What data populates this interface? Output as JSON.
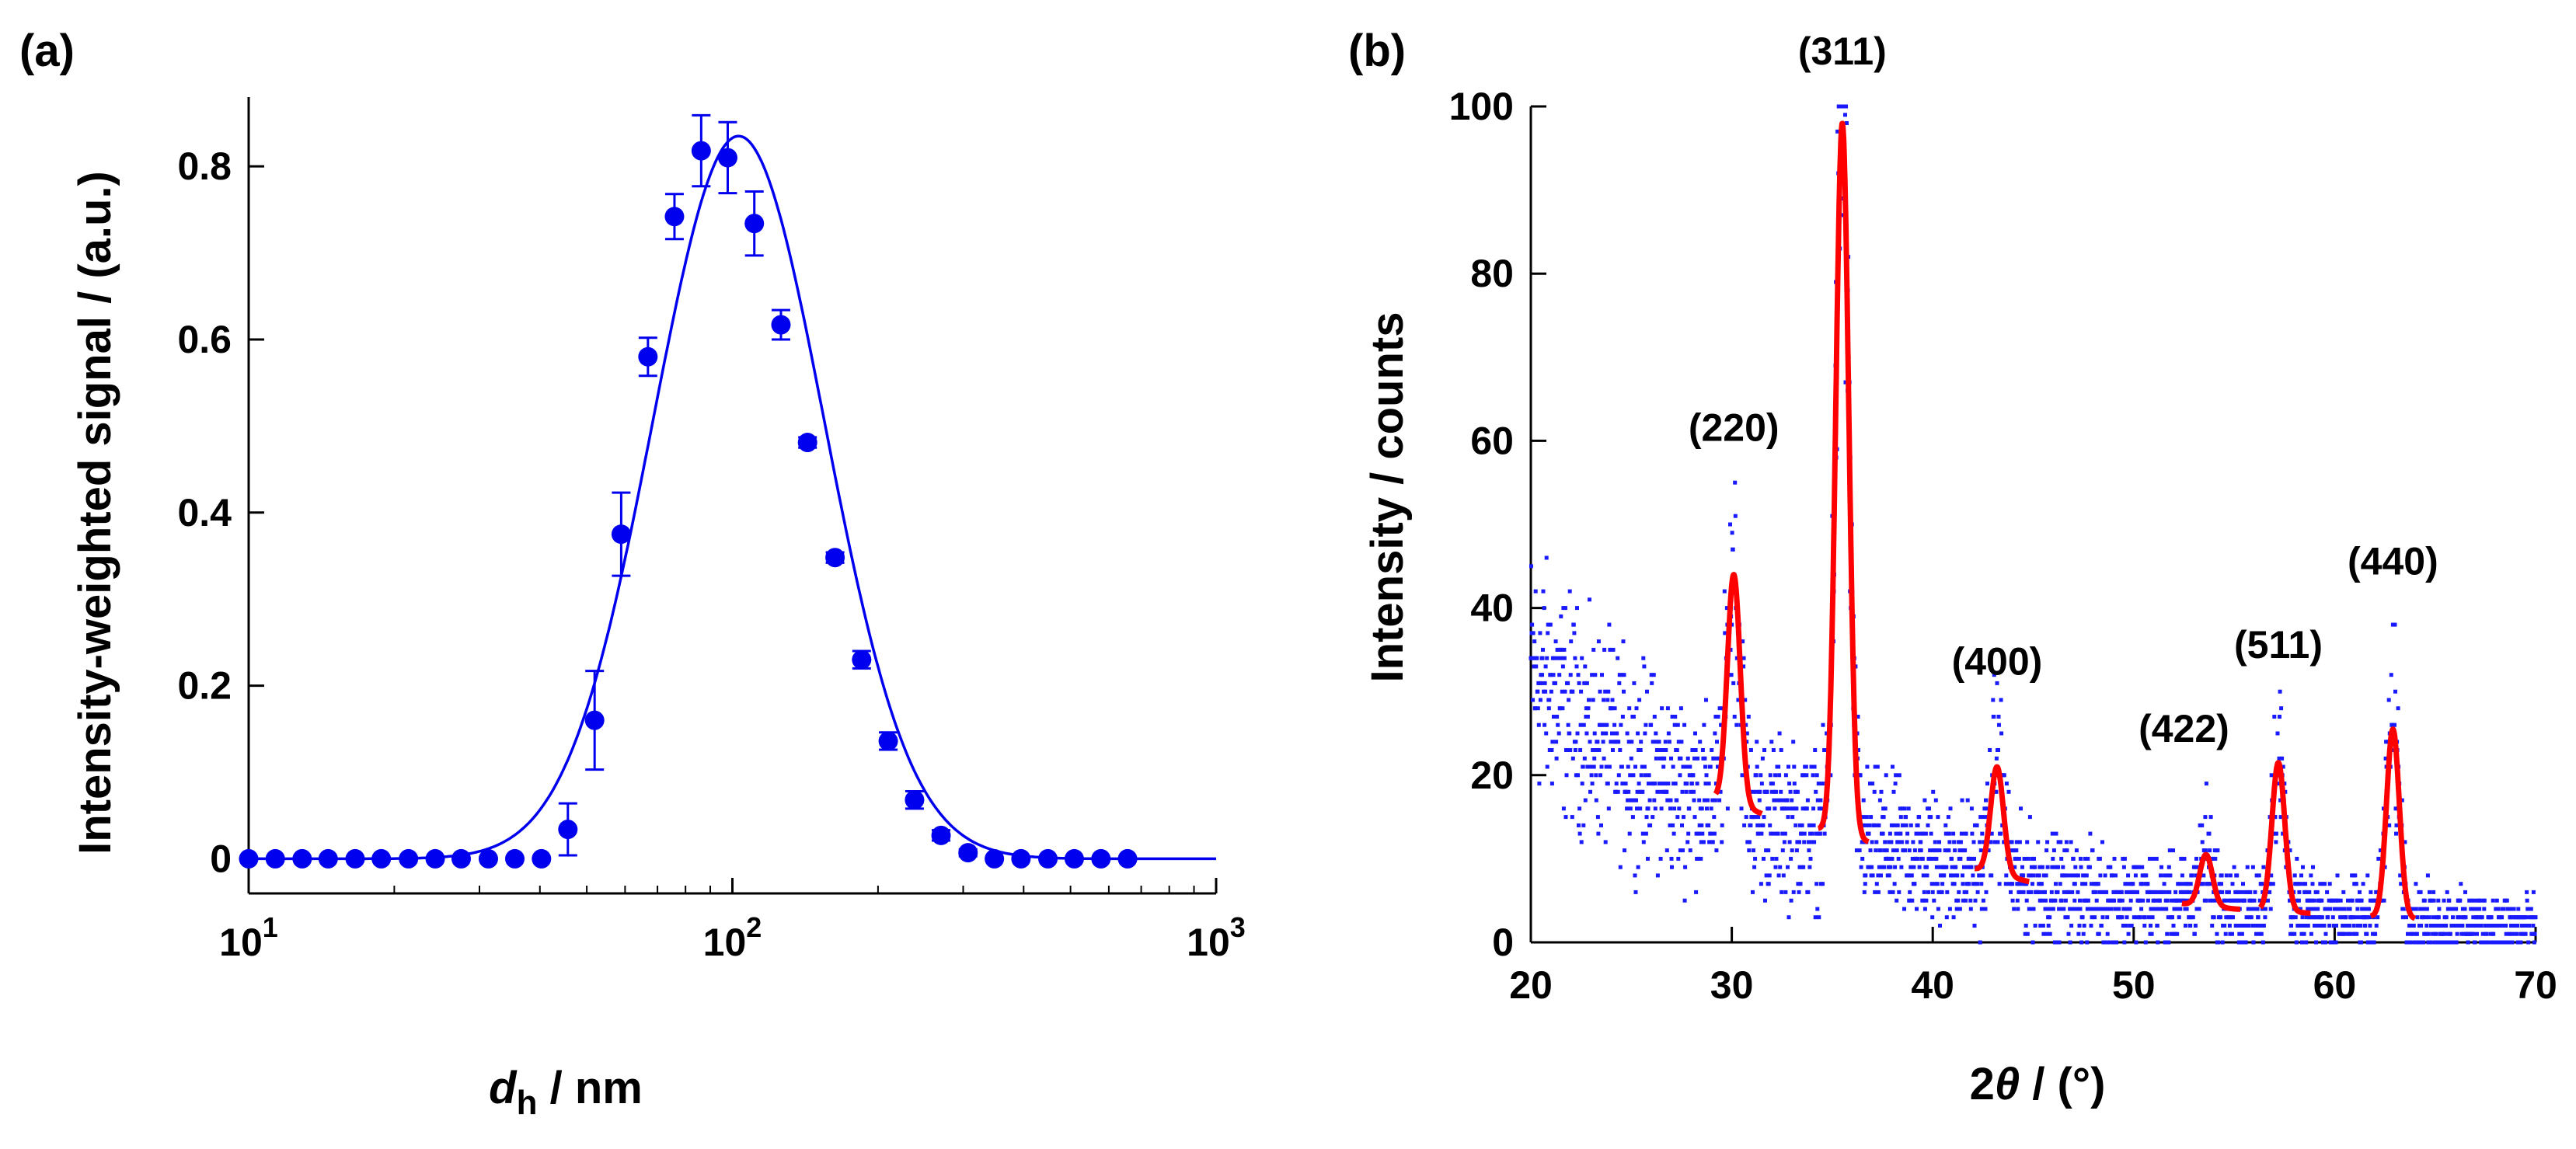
{
  "chart_data": [
    {
      "panel_label": "(a)",
      "type": "scatter",
      "xscale": "log",
      "xlim": [
        10,
        1000
      ],
      "ylim": [
        -0.04,
        0.88
      ],
      "xticks": [
        {
          "value": 10,
          "base": "10",
          "exp": "1"
        },
        {
          "value": 100,
          "base": "10",
          "exp": "2"
        },
        {
          "value": 1000,
          "base": "10",
          "exp": "3"
        }
      ],
      "yticks": [
        {
          "value": 0,
          "label": "0"
        },
        {
          "value": 0.2,
          "label": "0.2"
        },
        {
          "value": 0.4,
          "label": "0.4"
        },
        {
          "value": 0.6,
          "label": "0.6"
        },
        {
          "value": 0.8,
          "label": "0.8"
        }
      ],
      "xlabel": {
        "main": "d",
        "sub": "h",
        "rest": " / nm"
      },
      "ylabel": "Intensity-weighted signal / (a.u.)",
      "color": "#0000ee",
      "series": [
        {
          "name": "data",
          "x": [
            10,
            11.35,
            12.9,
            14.6,
            16.6,
            18.8,
            21.4,
            24.3,
            27.5,
            31.3,
            35.5,
            40.3,
            45.7,
            51.9,
            58.9,
            66.9,
            75.9,
            86.2,
            97.8,
            111,
            126,
            143,
            163,
            185,
            210,
            238,
            270,
            307,
            348,
            395,
            449,
            509,
            578,
            656
          ],
          "y": [
            0,
            0,
            0,
            0,
            0,
            0,
            0,
            0,
            0,
            0,
            0,
            0,
            0.034,
            0.16,
            0.375,
            0.58,
            0.742,
            0.818,
            0.81,
            0.734,
            0.617,
            0.481,
            0.348,
            0.23,
            0.136,
            0.068,
            0.027,
            0.007,
            0,
            0,
            0,
            0,
            0,
            0
          ],
          "err": [
            0,
            0,
            0,
            0,
            0,
            0,
            0,
            0,
            0,
            0,
            0,
            0,
            0.03,
            0.057,
            0.048,
            0.022,
            0.026,
            0.041,
            0.041,
            0.037,
            0.017,
            0.006,
            0.006,
            0.01,
            0.01,
            0.01,
            0.006,
            0.004,
            0,
            0,
            0,
            0,
            0,
            0
          ]
        },
        {
          "name": "fit",
          "type": "line",
          "peak_x": 103,
          "peak_y": 0.835,
          "sigma_log10": 0.177
        }
      ]
    },
    {
      "panel_label": "(b)",
      "type": "scatter",
      "xlim": [
        20,
        70
      ],
      "ylim": [
        0,
        100
      ],
      "xticks": [
        {
          "value": 20,
          "label": "20"
        },
        {
          "value": 30,
          "label": "30"
        },
        {
          "value": 40,
          "label": "40"
        },
        {
          "value": 50,
          "label": "50"
        },
        {
          "value": 60,
          "label": "60"
        },
        {
          "value": 70,
          "label": "70"
        }
      ],
      "yticks": [
        {
          "value": 0,
          "label": "0"
        },
        {
          "value": 20,
          "label": "20"
        },
        {
          "value": 40,
          "label": "40"
        },
        {
          "value": 60,
          "label": "60"
        },
        {
          "value": 80,
          "label": "80"
        },
        {
          "value": 100,
          "label": "100"
        }
      ],
      "xlabel": {
        "main": "2",
        "italic": "θ",
        "rest": " / (°)"
      },
      "ylabel": "Intensity / counts",
      "data_color": "#1a1aff",
      "fit_color": "#ff0000",
      "background": [
        [
          20,
          33
        ],
        [
          23,
          25
        ],
        [
          27,
          19
        ],
        [
          32,
          15
        ],
        [
          40,
          10
        ],
        [
          47,
          6
        ],
        [
          55,
          4
        ],
        [
          70,
          2
        ]
      ],
      "peaks": [
        {
          "label": "(220)",
          "center": 30.1,
          "height": 44,
          "range": [
            29.2,
            31.5
          ],
          "label_x": 30.1,
          "label_y": 60
        },
        {
          "label": "(311)",
          "center": 35.5,
          "height": 98,
          "range": [
            34.3,
            36.8
          ],
          "label_x": 35.5,
          "label_y": 105
        },
        {
          "label": "(400)",
          "center": 43.2,
          "height": 21,
          "range": [
            42.1,
            44.8
          ],
          "label_x": 43.2,
          "label_y": 32
        },
        {
          "label": "(422)",
          "center": 53.6,
          "height": 10.5,
          "range": [
            52.4,
            55.3
          ],
          "label_x": 52.5,
          "label_y": 24
        },
        {
          "label": "(511)",
          "center": 57.2,
          "height": 21.5,
          "range": [
            56.3,
            58.8
          ],
          "label_x": 57.2,
          "label_y": 34
        },
        {
          "label": "(440)",
          "center": 62.9,
          "height": 25.5,
          "range": [
            61.8,
            64.0
          ],
          "label_x": 62.9,
          "label_y": 44
        }
      ]
    }
  ]
}
